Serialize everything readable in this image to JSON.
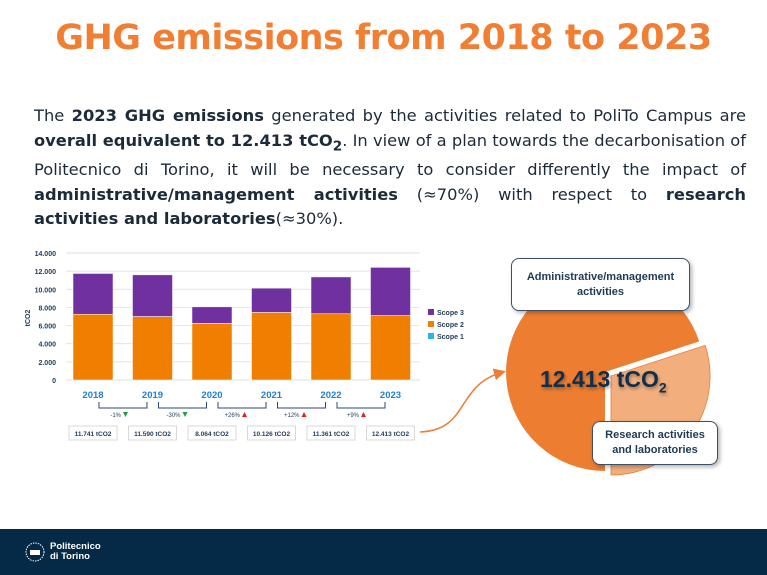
{
  "title": "GHG emissions from 2018 to 2023",
  "paragraph": {
    "p1": "The ",
    "b1": "2023 GHG emissions",
    "p2": " generated by the activities related to PoliTo Campus are ",
    "b2": "overall equivalent to 12.413 tCO",
    "b2_sub": "2",
    "p3": ". In view of a plan towards the decarbonisation of Politecnico di Torino, it will be necessary to consider differently the impact of ",
    "b3": "administrative/management activities",
    "p4": " (≈70%) with respect to ",
    "b4": "research activities and laboratories",
    "p5": "(≈30%)."
  },
  "chart_data": {
    "type": "bar",
    "stacked": true,
    "ylabel": "tCO2",
    "ylim": [
      0,
      14000
    ],
    "yticks": [
      "0",
      "2.000",
      "4.000",
      "6.000",
      "8.000",
      "10.000",
      "12.000",
      "14.000"
    ],
    "ytick_values": [
      0,
      2000,
      4000,
      6000,
      8000,
      10000,
      12000,
      14000
    ],
    "grid": true,
    "legend_position": "right",
    "categories": [
      "2018",
      "2019",
      "2020",
      "2021",
      "2022",
      "2023"
    ],
    "series": [
      {
        "name": "Scope 1",
        "color": "#29B5E8",
        "values": [
          0,
          0,
          0,
          0,
          0,
          0
        ]
      },
      {
        "name": "Scope 2",
        "color": "#F07F00",
        "values": [
          7250,
          7000,
          6250,
          7450,
          7300,
          7100
        ]
      },
      {
        "name": "Scope 3",
        "color": "#7030A0",
        "values": [
          4491,
          4590,
          1814,
          2676,
          4061,
          5313
        ]
      }
    ],
    "totals": [
      "11.741 tCO2",
      "11.590 tCO2",
      "8.064 tCO2",
      "10.126 tCO2",
      "11.361 tCO2",
      "12.413 tCO2"
    ],
    "changes": [
      {
        "label": "-1%",
        "direction": "down"
      },
      {
        "label": "-30%",
        "direction": "down"
      },
      {
        "label": "+26%",
        "direction": "up"
      },
      {
        "label": "+12%",
        "direction": "up"
      },
      {
        "label": "+9%",
        "direction": "up"
      }
    ]
  },
  "pie": {
    "total_label": "12.413 tCO",
    "total_sub": "2",
    "slices": [
      {
        "label": "Administrative/management activities",
        "percent": 70,
        "color": "#ED7D31"
      },
      {
        "label": "Research activities and laboratories",
        "percent": 30,
        "color": "#F2AE7D"
      }
    ],
    "callout_admin": "Administrative/management activities",
    "callout_research": "Research activities and laboratories"
  },
  "footer": {
    "logo_line1": "Politecnico",
    "logo_line2": "di Torino"
  }
}
